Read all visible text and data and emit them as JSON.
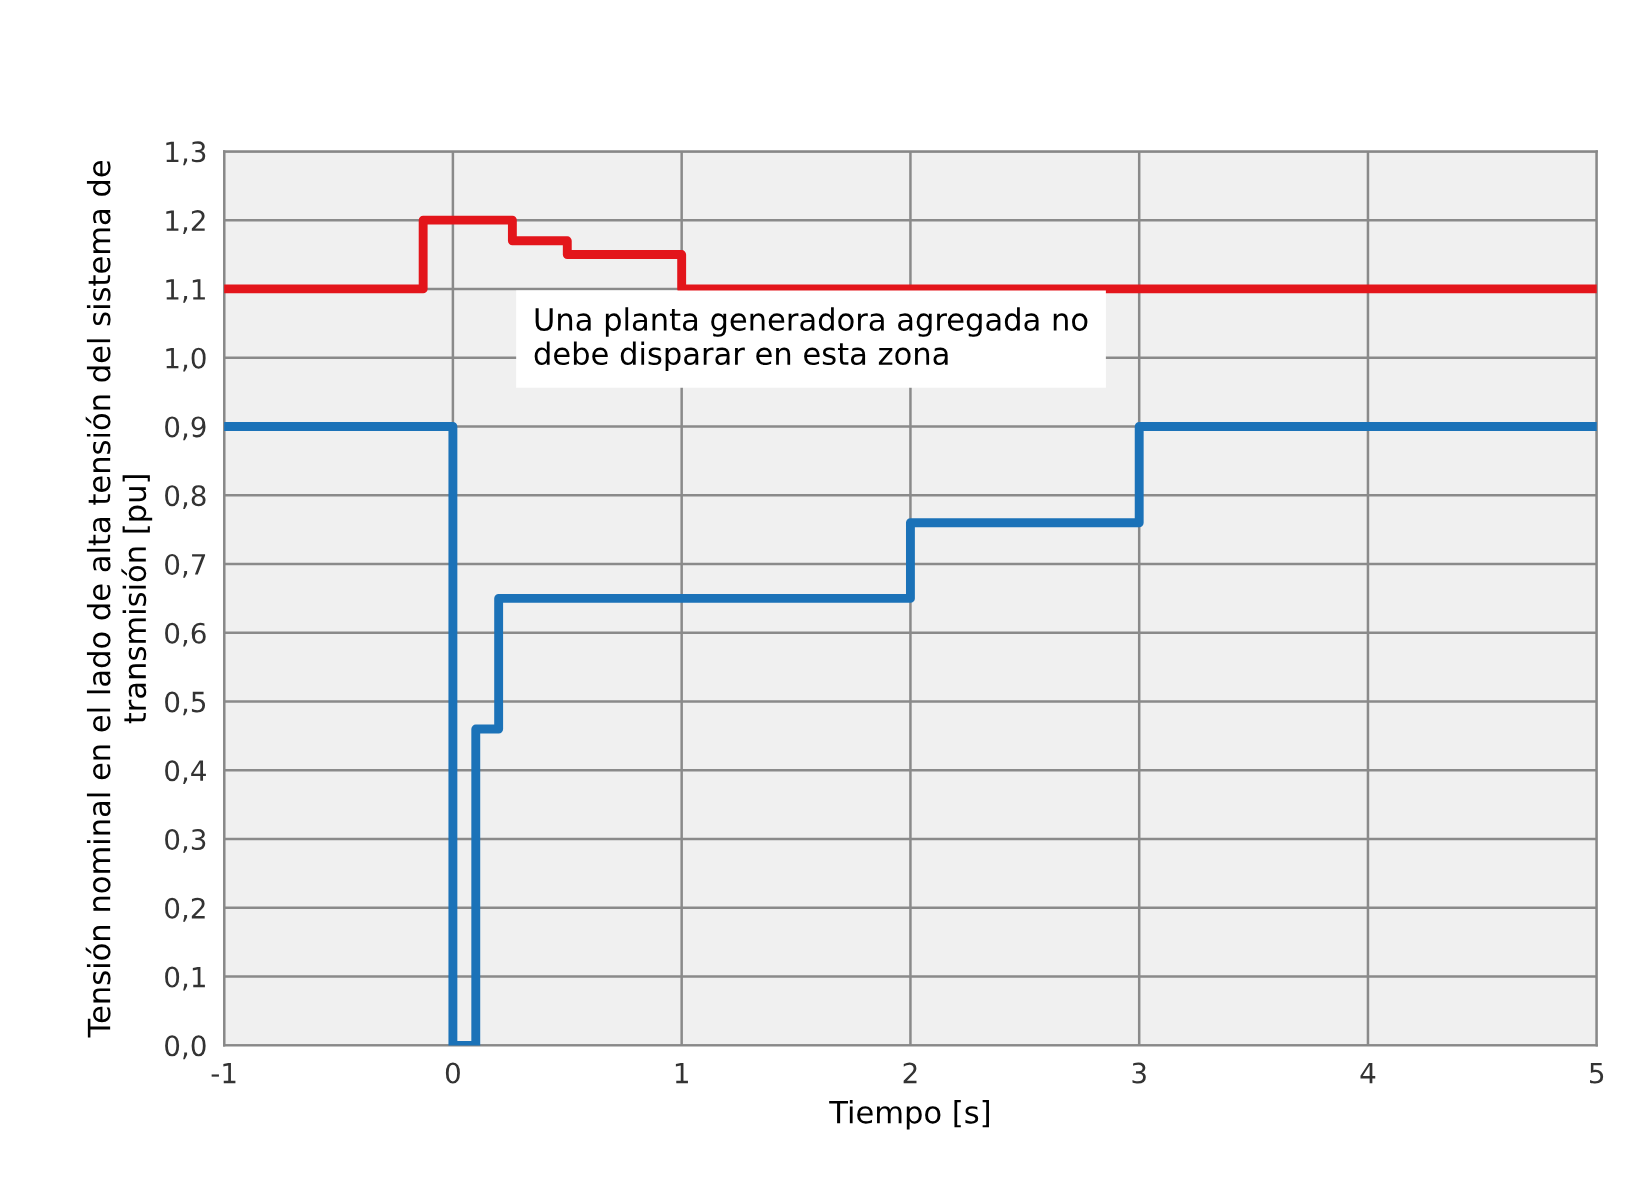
{
  "chart_data": {
    "type": "step",
    "xlabel": "Tiempo [s]",
    "ylabel": "Tensión nominal en el lado de alta tensión del sistema de\ntransmisión [pu]",
    "annotations": [
      "Una planta generadora agregada no\ndebe disparar en esta zona"
    ],
    "series": [
      {
        "color": "#e3151b",
        "x": [
          -1,
          -0.13,
          0.26,
          0.5,
          1.0,
          5
        ],
        "values": [
          1.1,
          1.2,
          1.17,
          1.15,
          1.1,
          1.1
        ]
      },
      {
        "color": "#1b72b8",
        "x": [
          -1,
          0,
          0.1,
          0.2,
          2,
          3,
          5
        ],
        "values": [
          0.9,
          0.0,
          0.46,
          0.65,
          0.76,
          0.9,
          0.9
        ]
      }
    ],
    "xlim": [
      -1,
      5
    ],
    "xticks": [
      {
        "value": -1,
        "label": "-1"
      },
      0,
      1,
      2,
      3,
      4,
      5
    ],
    "ylim": [
      0,
      1.3
    ],
    "yticks": [
      {
        "value": 0,
        "label": "0,0"
      },
      {
        "value": 0.1,
        "label": "0,1"
      },
      {
        "value": 0.2,
        "label": "0,2"
      },
      {
        "value": 0.3,
        "label": "0,3"
      },
      {
        "value": 0.4,
        "label": "0,4"
      },
      {
        "value": 0.5,
        "label": "0,5"
      },
      {
        "value": 0.6,
        "label": "0,6"
      },
      {
        "value": 0.7,
        "label": "0,7"
      },
      {
        "value": 0.8,
        "label": "0,8"
      },
      {
        "value": 0.9,
        "label": "0,9"
      },
      {
        "value": 1.0,
        "label": "1,0"
      },
      {
        "value": 1.1,
        "label": "1,1"
      },
      {
        "value": 1.2,
        "label": "1,2"
      },
      {
        "value": 1.3,
        "label": "1,3"
      }
    ],
    "grid": true,
    "marker": "none",
    "line_style": "solid"
  }
}
